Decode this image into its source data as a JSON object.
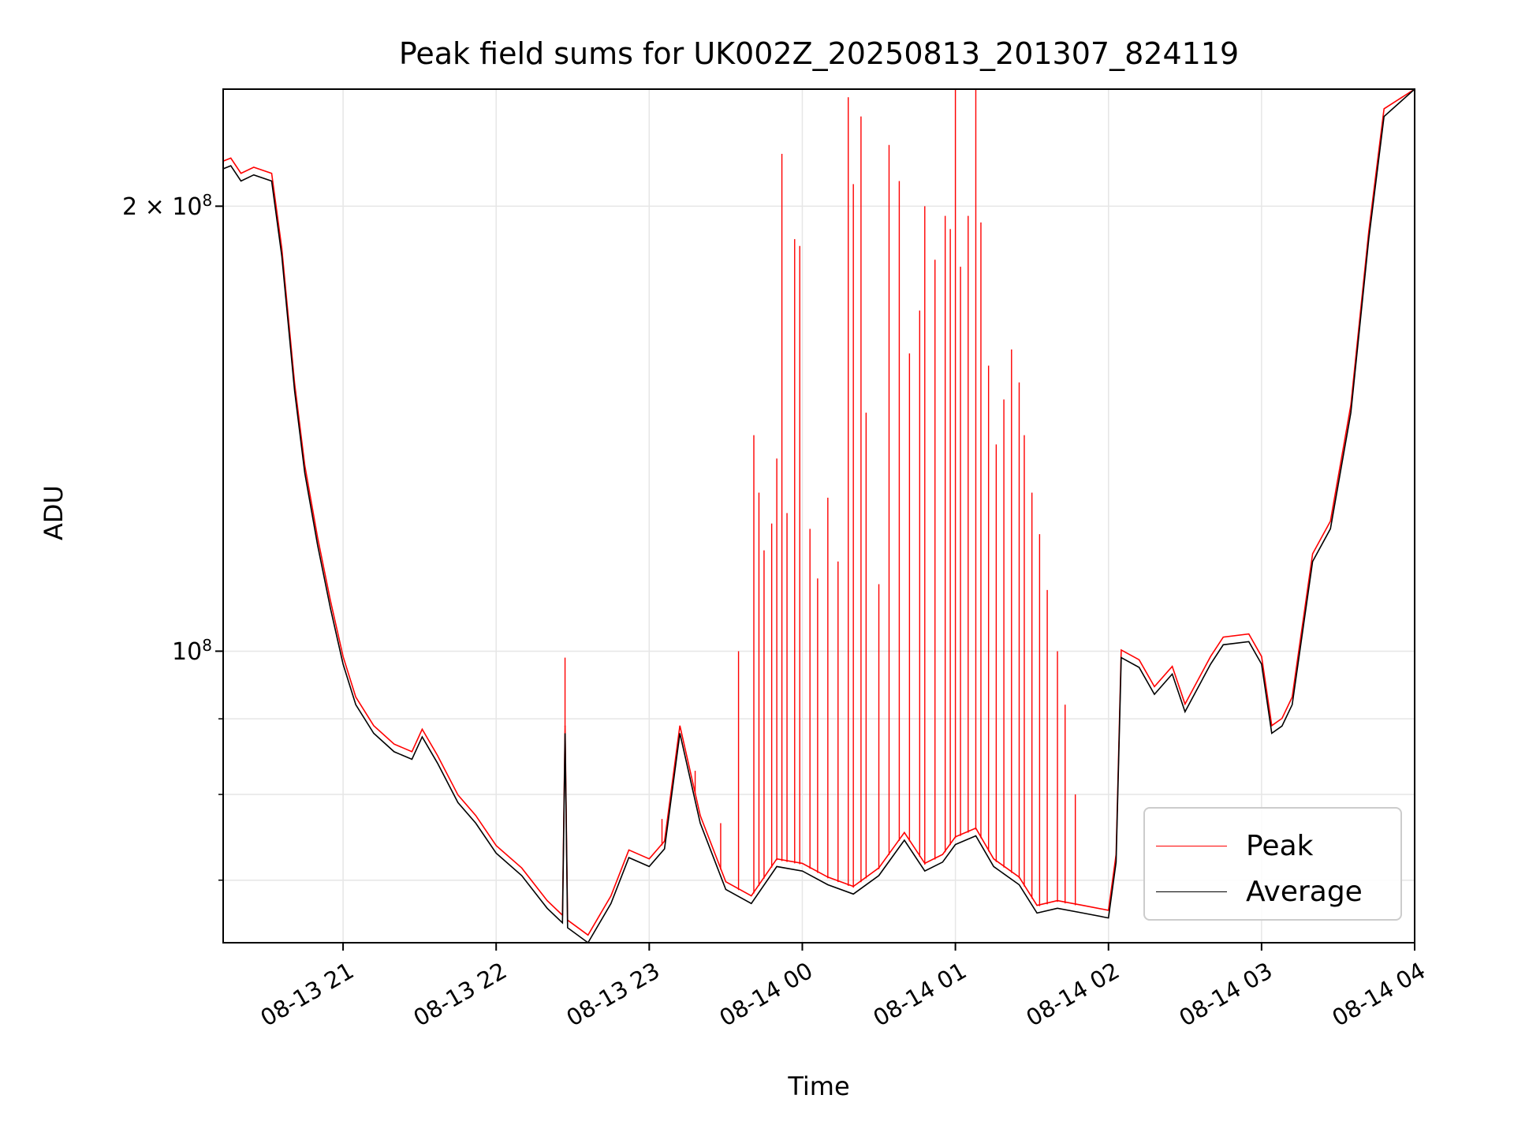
{
  "chart_data": {
    "type": "line",
    "title": "Peak field sums for UK002Z_20250813_201307_824119",
    "xlabel": "Time",
    "ylabel": "ADU",
    "yscale": "log",
    "xlim": [
      "2025-08-13 20:13",
      "2025-08-14 04:00"
    ],
    "ylim": [
      63500000,
      240000000
    ],
    "x_ticks": [
      "08-13 21",
      "08-13 22",
      "08-13 23",
      "08-14 00",
      "08-14 01",
      "08-14 02",
      "08-14 03",
      "08-14 04"
    ],
    "y_ticks": [
      {
        "value": 200000000,
        "base": "2 × 10",
        "exp": "8"
      },
      {
        "value": 100000000,
        "base": "10",
        "exp": "8"
      }
    ],
    "grid": true,
    "legend_position": "lower-right",
    "series": [
      {
        "name": "Average",
        "color": "#000000",
        "points": [
          [
            "2025-08-13 20:13",
            212000000
          ],
          [
            "2025-08-13 20:16",
            213000000
          ],
          [
            "2025-08-13 20:20",
            208000000
          ],
          [
            "2025-08-13 20:25",
            210000000
          ],
          [
            "2025-08-13 20:32",
            208000000
          ],
          [
            "2025-08-13 20:36",
            185000000
          ],
          [
            "2025-08-13 20:41",
            150000000
          ],
          [
            "2025-08-13 20:45",
            132000000
          ],
          [
            "2025-08-13 20:50",
            118000000
          ],
          [
            "2025-08-13 20:55",
            107000000
          ],
          [
            "2025-08-13 21:00",
            98000000
          ],
          [
            "2025-08-13 21:05",
            92000000
          ],
          [
            "2025-08-13 21:12",
            88000000
          ],
          [
            "2025-08-13 21:20",
            85500000
          ],
          [
            "2025-08-13 21:27",
            84500000
          ],
          [
            "2025-08-13 21:31",
            87500000
          ],
          [
            "2025-08-13 21:37",
            84000000
          ],
          [
            "2025-08-13 21:45",
            79000000
          ],
          [
            "2025-08-13 21:52",
            76500000
          ],
          [
            "2025-08-13 22:00",
            73000000
          ],
          [
            "2025-08-13 22:10",
            70500000
          ],
          [
            "2025-08-13 22:20",
            67000000
          ],
          [
            "2025-08-13 22:26",
            65500000
          ],
          [
            "2025-08-13 22:27",
            88000000
          ],
          [
            "2025-08-13 22:28",
            65000000
          ],
          [
            "2025-08-13 22:36",
            63500000
          ],
          [
            "2025-08-13 22:45",
            67500000
          ],
          [
            "2025-08-13 22:52",
            72500000
          ],
          [
            "2025-08-13 23:00",
            71500000
          ],
          [
            "2025-08-13 23:06",
            73500000
          ],
          [
            "2025-08-13 23:12",
            88000000
          ],
          [
            "2025-08-13 23:20",
            76500000
          ],
          [
            "2025-08-13 23:30",
            69000000
          ],
          [
            "2025-08-13 23:40",
            67500000
          ],
          [
            "2025-08-13 23:50",
            71500000
          ],
          [
            "2025-08-14 00:00",
            71000000
          ],
          [
            "2025-08-14 00:10",
            69500000
          ],
          [
            "2025-08-14 00:20",
            68500000
          ],
          [
            "2025-08-14 00:30",
            70500000
          ],
          [
            "2025-08-14 00:40",
            74500000
          ],
          [
            "2025-08-14 00:48",
            71000000
          ],
          [
            "2025-08-14 00:55",
            72000000
          ],
          [
            "2025-08-14 01:00",
            74000000
          ],
          [
            "2025-08-14 01:08",
            75000000
          ],
          [
            "2025-08-14 01:15",
            71500000
          ],
          [
            "2025-08-14 01:25",
            69500000
          ],
          [
            "2025-08-14 01:32",
            66500000
          ],
          [
            "2025-08-14 01:40",
            67000000
          ],
          [
            "2025-08-14 01:50",
            66500000
          ],
          [
            "2025-08-14 02:00",
            66000000
          ],
          [
            "2025-08-14 02:03",
            72000000
          ],
          [
            "2025-08-14 02:05",
            99000000
          ],
          [
            "2025-08-14 02:12",
            97500000
          ],
          [
            "2025-08-14 02:18",
            93500000
          ],
          [
            "2025-08-14 02:25",
            96500000
          ],
          [
            "2025-08-14 02:30",
            91000000
          ],
          [
            "2025-08-14 02:40",
            98000000
          ],
          [
            "2025-08-14 02:45",
            101000000
          ],
          [
            "2025-08-14 02:55",
            101500000
          ],
          [
            "2025-08-14 03:00",
            98000000
          ],
          [
            "2025-08-14 03:04",
            88000000
          ],
          [
            "2025-08-14 03:08",
            89000000
          ],
          [
            "2025-08-14 03:12",
            92000000
          ],
          [
            "2025-08-14 03:20",
            115000000
          ],
          [
            "2025-08-14 03:27",
            121000000
          ],
          [
            "2025-08-14 03:35",
            145000000
          ],
          [
            "2025-08-14 03:42",
            190000000
          ],
          [
            "2025-08-14 03:48",
            230000000
          ],
          [
            "2025-08-14 04:00",
            240000000
          ]
        ]
      },
      {
        "name": "Peak",
        "color": "#ff0000",
        "spikes": [
          [
            "2025-08-13 22:27",
            99000000
          ],
          [
            "2025-08-13 23:05",
            77000000
          ],
          [
            "2025-08-13 23:18",
            83000000
          ],
          [
            "2025-08-13 23:28",
            76500000
          ],
          [
            "2025-08-13 23:35",
            100000000
          ],
          [
            "2025-08-13 23:41",
            140000000
          ],
          [
            "2025-08-13 23:43",
            128000000
          ],
          [
            "2025-08-13 23:45",
            117000000
          ],
          [
            "2025-08-13 23:48",
            122000000
          ],
          [
            "2025-08-13 23:50",
            135000000
          ],
          [
            "2025-08-13 23:52",
            217000000
          ],
          [
            "2025-08-13 23:54",
            124000000
          ],
          [
            "2025-08-13 23:57",
            190000000
          ],
          [
            "2025-08-13 23:59",
            188000000
          ],
          [
            "2025-08-14 00:03",
            121000000
          ],
          [
            "2025-08-14 00:06",
            112000000
          ],
          [
            "2025-08-14 00:10",
            127000000
          ],
          [
            "2025-08-14 00:14",
            115000000
          ],
          [
            "2025-08-14 00:18",
            237000000
          ],
          [
            "2025-08-14 00:20",
            207000000
          ],
          [
            "2025-08-14 00:23",
            230000000
          ],
          [
            "2025-08-14 00:25",
            145000000
          ],
          [
            "2025-08-14 00:30",
            111000000
          ],
          [
            "2025-08-14 00:34",
            220000000
          ],
          [
            "2025-08-14 00:38",
            208000000
          ],
          [
            "2025-08-14 00:42",
            159000000
          ],
          [
            "2025-08-14 00:46",
            170000000
          ],
          [
            "2025-08-14 00:48",
            200000000
          ],
          [
            "2025-08-14 00:52",
            184000000
          ],
          [
            "2025-08-14 00:56",
            197000000
          ],
          [
            "2025-08-14 00:58",
            193000000
          ],
          [
            "2025-08-14 01:00",
            240000000
          ],
          [
            "2025-08-14 01:02",
            182000000
          ],
          [
            "2025-08-14 01:05",
            197000000
          ],
          [
            "2025-08-14 01:08",
            240000000
          ],
          [
            "2025-08-14 01:10",
            195000000
          ],
          [
            "2025-08-14 01:13",
            156000000
          ],
          [
            "2025-08-14 01:16",
            138000000
          ],
          [
            "2025-08-14 01:19",
            148000000
          ],
          [
            "2025-08-14 01:22",
            160000000
          ],
          [
            "2025-08-14 01:25",
            152000000
          ],
          [
            "2025-08-14 01:27",
            140000000
          ],
          [
            "2025-08-14 01:30",
            128000000
          ],
          [
            "2025-08-14 01:33",
            120000000
          ],
          [
            "2025-08-14 01:36",
            110000000
          ],
          [
            "2025-08-14 01:40",
            100000000
          ],
          [
            "2025-08-14 01:43",
            92000000
          ],
          [
            "2025-08-14 01:47",
            80000000
          ]
        ]
      }
    ]
  }
}
